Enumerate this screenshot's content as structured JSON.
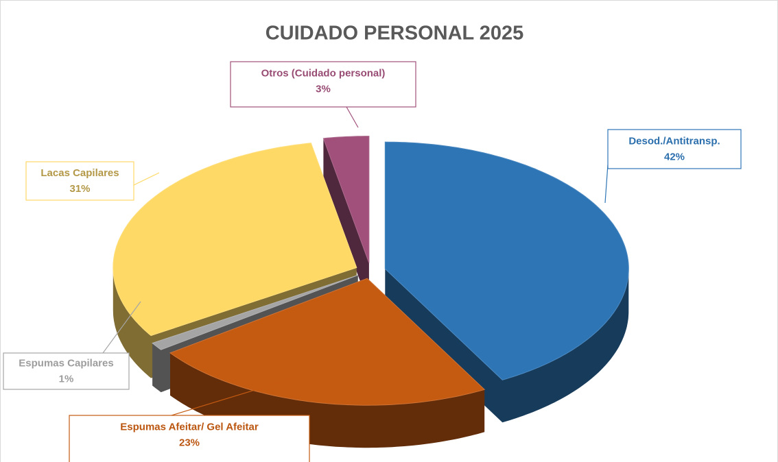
{
  "chart_data": {
    "type": "pie",
    "title": "CUIDADO PERSONAL 2025",
    "categories": [
      "Desod./Antitransp.",
      "Espumas Afeitar/ Gel Afeitar",
      "Espumas Capilares",
      "Lacas Capilares",
      "Otros (Cuidado personal)"
    ],
    "values": [
      42,
      23,
      1,
      31,
      3
    ],
    "value_labels": [
      "42%",
      "23%",
      "1%",
      "31%",
      "3%"
    ],
    "colors": [
      "#2e75b6",
      "#c55a11",
      "#a5a5a5",
      "#ffd966",
      "#a0507a"
    ]
  }
}
